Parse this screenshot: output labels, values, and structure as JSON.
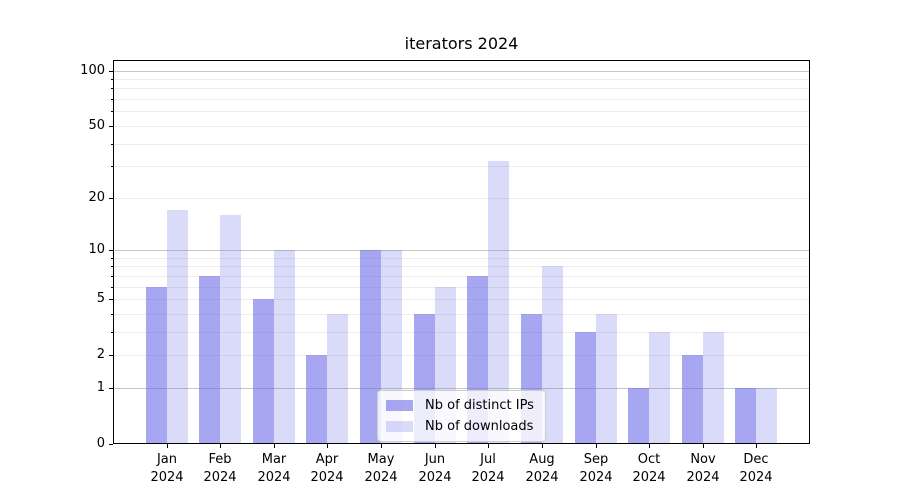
{
  "chart_data": {
    "type": "bar",
    "title": "iterators 2024",
    "categories": [
      "Jan",
      "Feb",
      "Mar",
      "Apr",
      "May",
      "Jun",
      "Jul",
      "Aug",
      "Sep",
      "Oct",
      "Nov",
      "Dec"
    ],
    "year_label": "2024",
    "series": [
      {
        "name": "Nb of distinct IPs",
        "values": [
          6,
          7,
          5,
          2,
          10,
          4,
          7,
          4,
          3,
          1,
          2,
          1
        ]
      },
      {
        "name": "Nb of downloads",
        "values": [
          17,
          16,
          10,
          4,
          10,
          6,
          32,
          8,
          4,
          3,
          3,
          1
        ]
      }
    ],
    "yscale": "log1p",
    "ylim": [
      0,
      118
    ],
    "ytick_labels": [
      0,
      1,
      2,
      5,
      10,
      20,
      50,
      100
    ],
    "major_gridlines": [
      1,
      10,
      100
    ],
    "minor_gridlines": [
      2,
      3,
      4,
      5,
      6,
      7,
      8,
      9,
      20,
      30,
      40,
      50,
      60,
      70,
      80,
      90
    ],
    "legend_position": "lower center",
    "grid": true
  },
  "colors": {
    "series1": "rgba(108,108,232,0.6)",
    "series2": "rgba(108,108,232,0.25)",
    "grid_major": "#c6c6c6",
    "grid_minor": "#ededed",
    "axis": "#000000"
  }
}
